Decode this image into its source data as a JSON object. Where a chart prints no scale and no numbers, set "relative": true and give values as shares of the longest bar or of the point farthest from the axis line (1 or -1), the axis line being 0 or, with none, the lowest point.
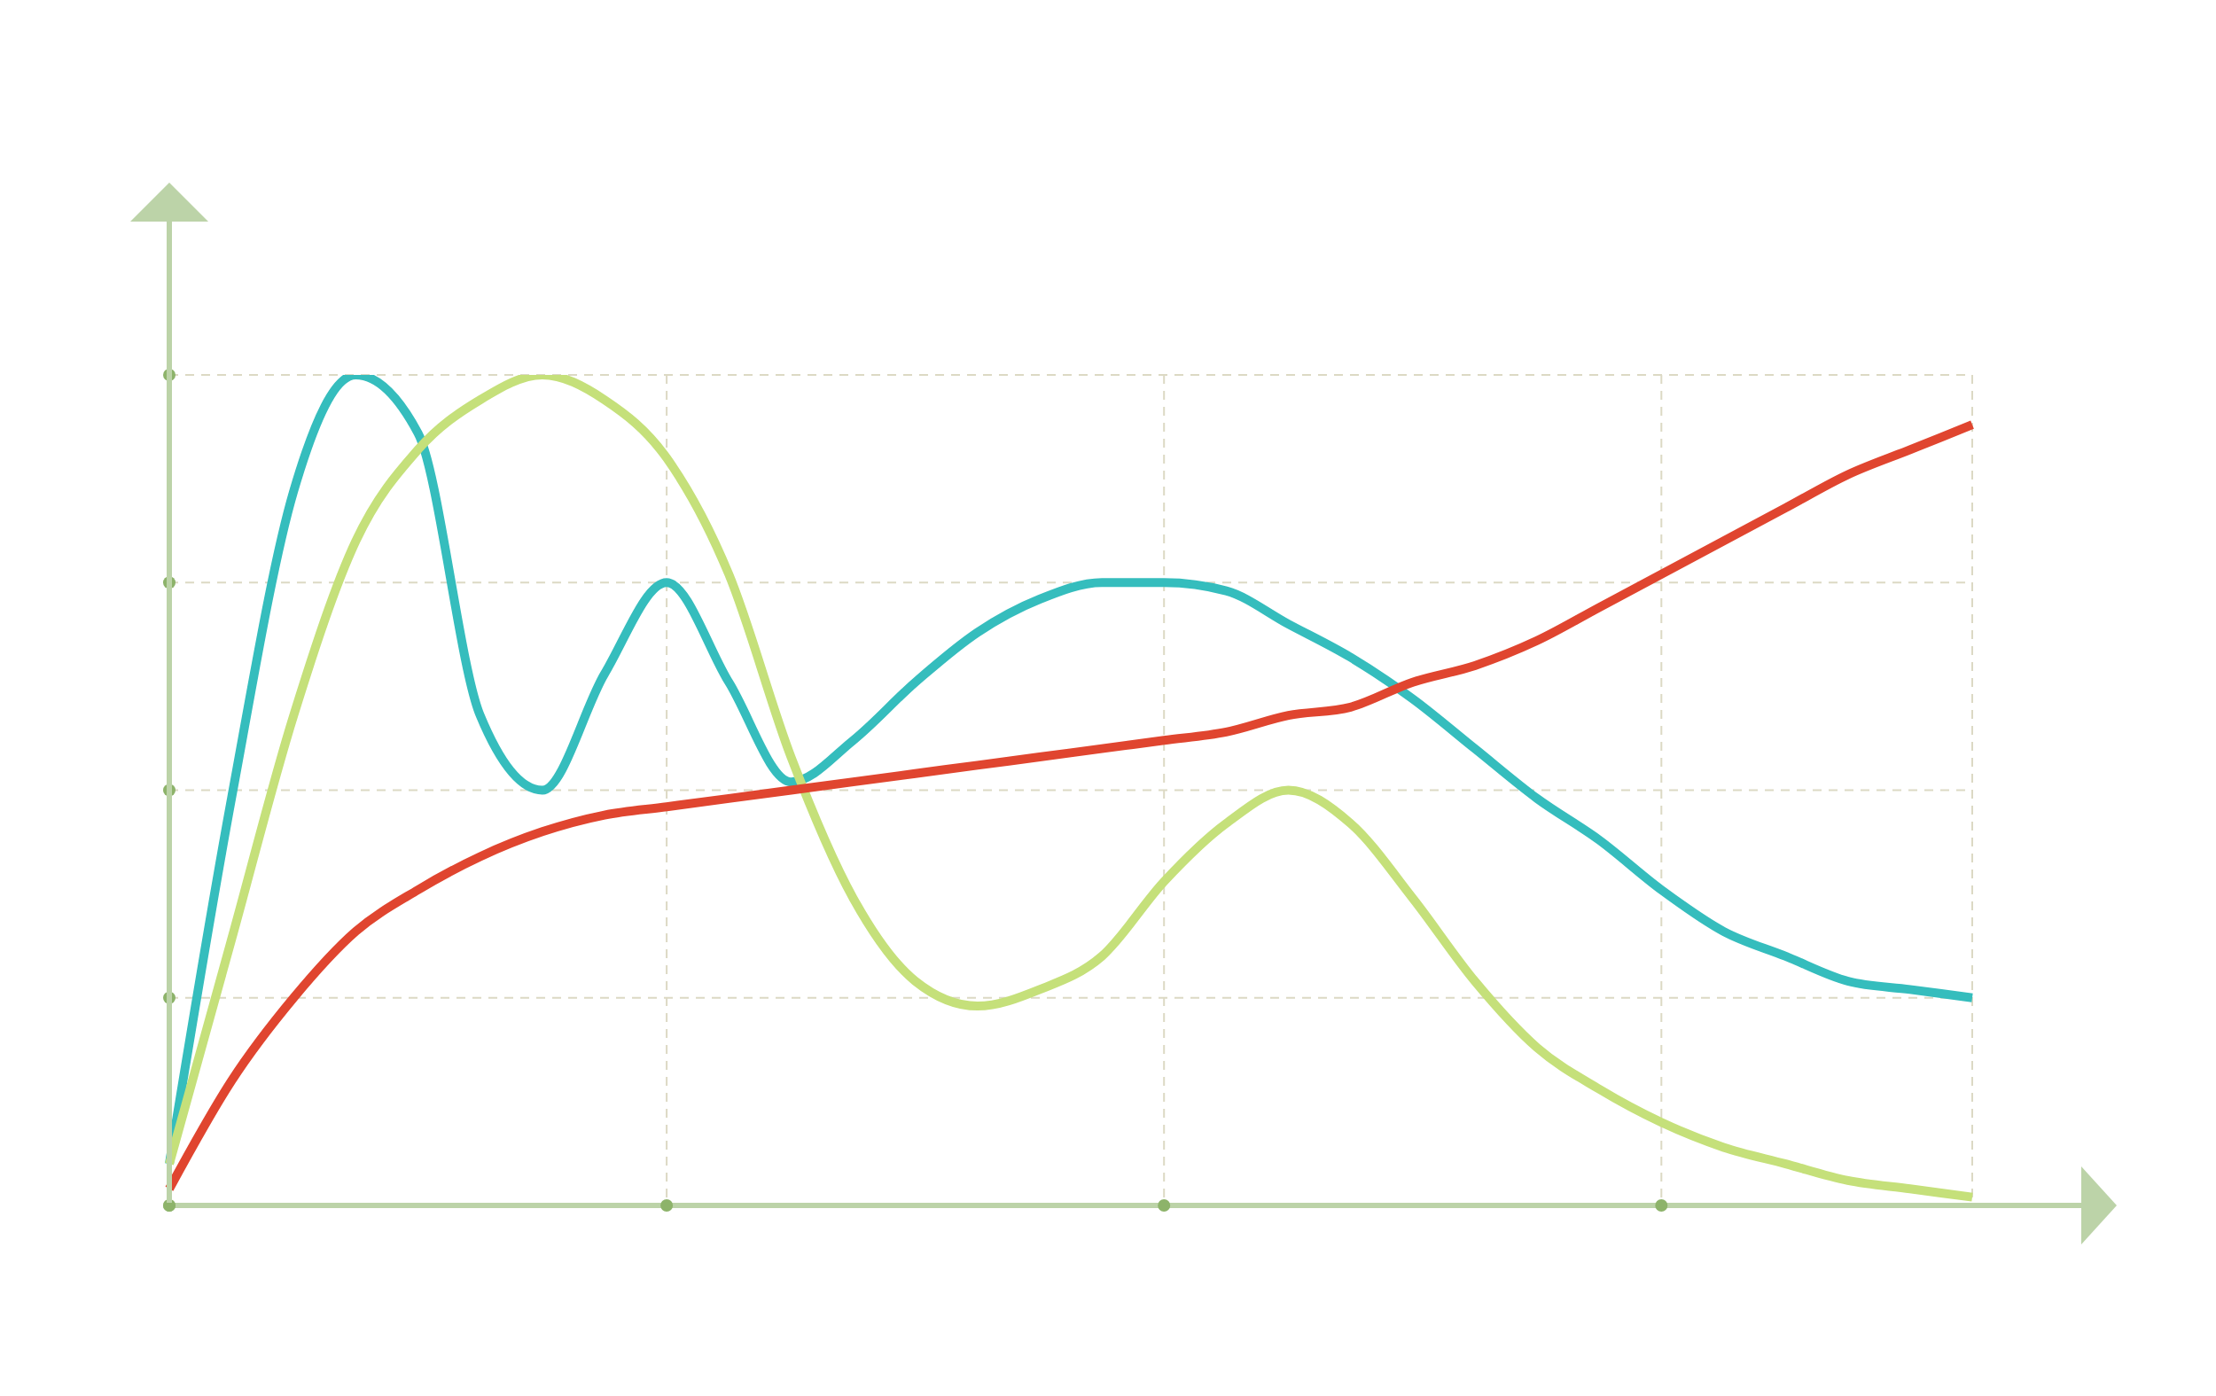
{
  "chart_data": {
    "type": "line",
    "relative": true,
    "grid": true,
    "categories": [
      null,
      null,
      null,
      null,
      null,
      null,
      null,
      null,
      null,
      null,
      null,
      null,
      null,
      null,
      null,
      null,
      null,
      null,
      null,
      null,
      null,
      null,
      null,
      null,
      null,
      null,
      null,
      null,
      null,
      null
    ],
    "series": [
      {
        "color": "#35bdbd",
        "values": [
          0.05,
          0.49,
          0.86,
          1.0,
          0.93,
          0.59,
          0.5,
          0.64,
          0.75,
          0.63,
          0.51,
          0.56,
          0.63,
          0.69,
          0.73,
          0.75,
          0.75,
          0.74,
          0.7,
          0.66,
          0.61,
          0.55,
          0.49,
          0.44,
          0.38,
          0.33,
          0.3,
          0.27,
          0.26,
          0.25
        ]
      },
      {
        "color": "#c5e07a",
        "values": [
          0.05,
          0.32,
          0.59,
          0.8,
          0.91,
          0.97,
          1.0,
          0.97,
          0.9,
          0.76,
          0.54,
          0.37,
          0.27,
          0.24,
          0.26,
          0.3,
          0.39,
          0.46,
          0.5,
          0.46,
          0.37,
          0.27,
          0.19,
          0.14,
          0.1,
          0.07,
          0.05,
          0.03,
          0.02,
          0.01
        ]
      },
      {
        "color": "#e0452f",
        "values": [
          0.02,
          0.15,
          0.25,
          0.33,
          0.38,
          0.42,
          0.45,
          0.47,
          0.48,
          0.49,
          0.5,
          0.51,
          0.52,
          0.53,
          0.54,
          0.55,
          0.56,
          0.57,
          0.59,
          0.6,
          0.63,
          0.65,
          0.68,
          0.72,
          0.76,
          0.8,
          0.84,
          0.88,
          0.91,
          0.94
        ]
      }
    ]
  }
}
